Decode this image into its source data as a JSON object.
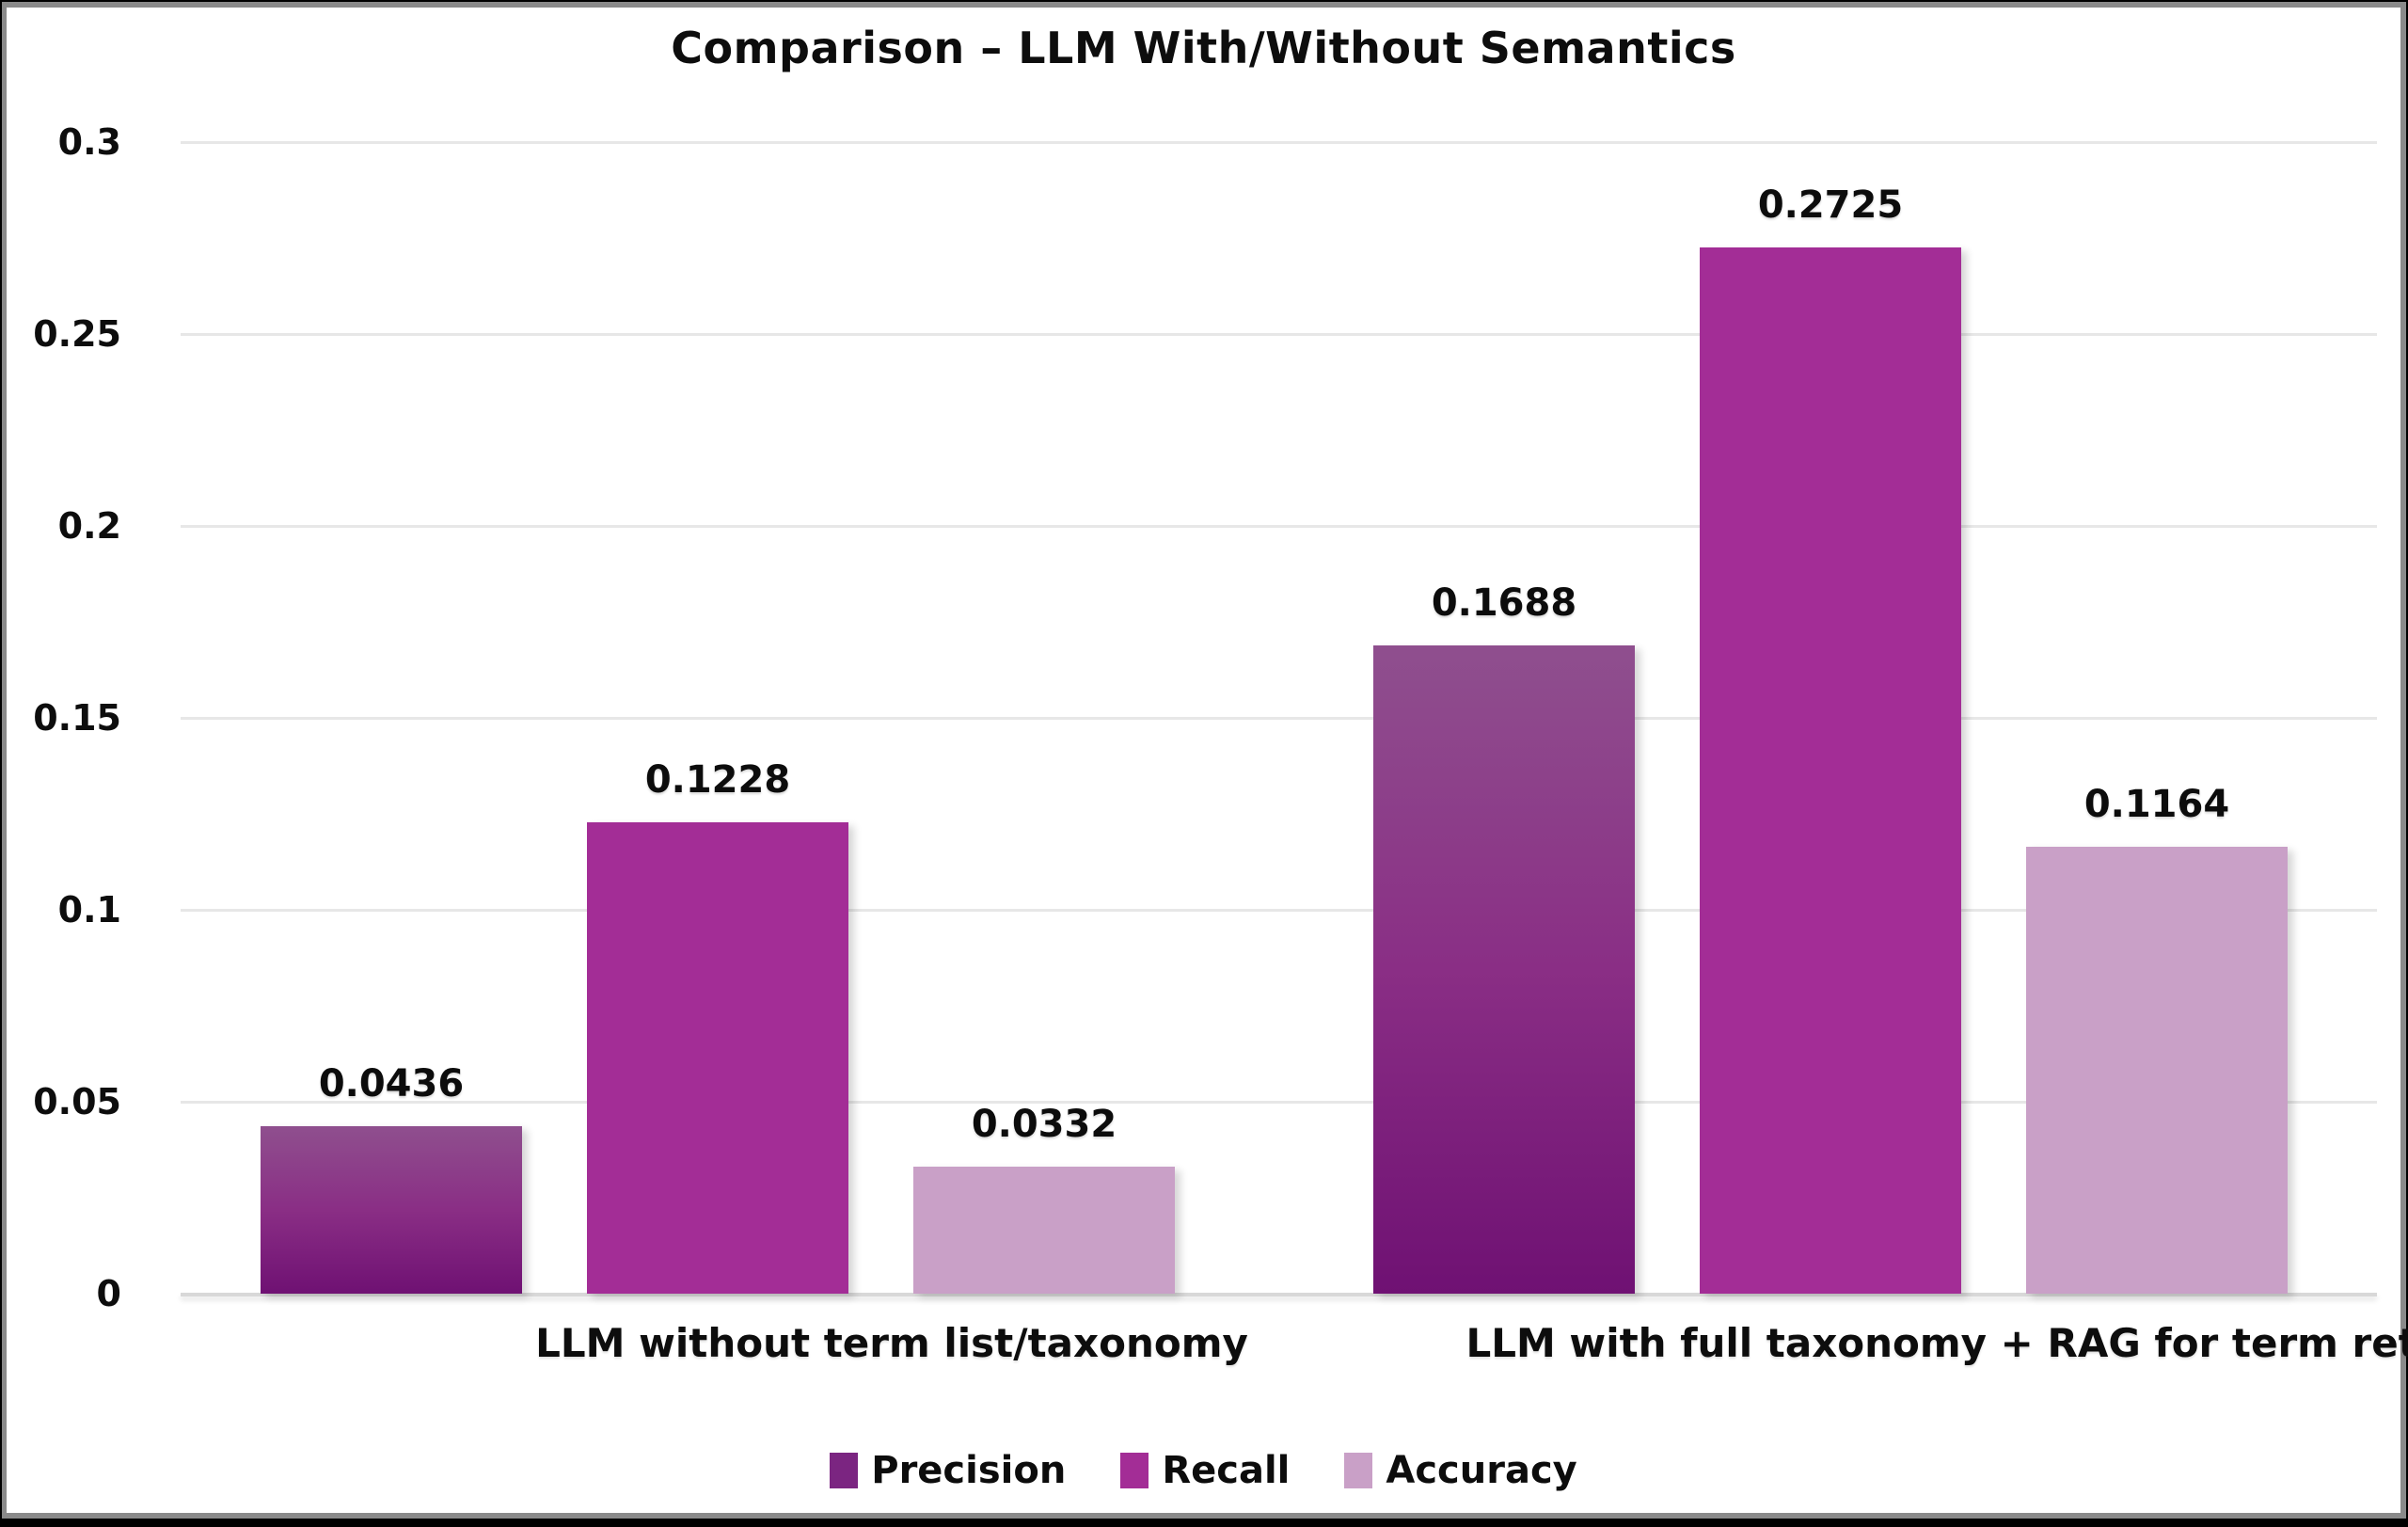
{
  "chart_data": {
    "type": "bar",
    "title": "Comparison – LLM With/Without Semantics",
    "categories": [
      "LLM without term list/taxonomy",
      "LLM with full taxonomy + RAG for term retrieval"
    ],
    "series": [
      {
        "name": "Precision",
        "values": [
          0.0436,
          0.1688
        ],
        "labels": [
          "0.0436",
          "0.1688"
        ],
        "color": "#7b2581",
        "gradient_top": "#8f4f8e",
        "gradient_mid": "#8a2e85",
        "gradient_bottom": "#6f1173"
      },
      {
        "name": "Recall",
        "values": [
          0.1228,
          0.2725
        ],
        "labels": [
          "0.1228",
          "0.2725"
        ],
        "color": "#a32d96"
      },
      {
        "name": "Accuracy",
        "values": [
          0.0332,
          0.1164
        ],
        "labels": [
          "0.0332",
          "0.1164"
        ],
        "color": "#c9a0c7"
      }
    ],
    "y_axis": {
      "min": 0,
      "max": 0.3,
      "tick_step": 0.05,
      "tick_labels": [
        "0",
        "0.05",
        "0.1",
        "0.15",
        "0.2",
        "0.25",
        "0.3"
      ]
    },
    "legend": {
      "position": "bottom",
      "items": [
        "Precision",
        "Recall",
        "Accuracy"
      ]
    },
    "grid": "horizontal",
    "gridline_color": "#e7e7e7",
    "baseline_color": "#d8d8d8",
    "background_color": "#ffffff",
    "frame_border_color": "#8a8a8a",
    "text_color": "#0d0d0d"
  }
}
